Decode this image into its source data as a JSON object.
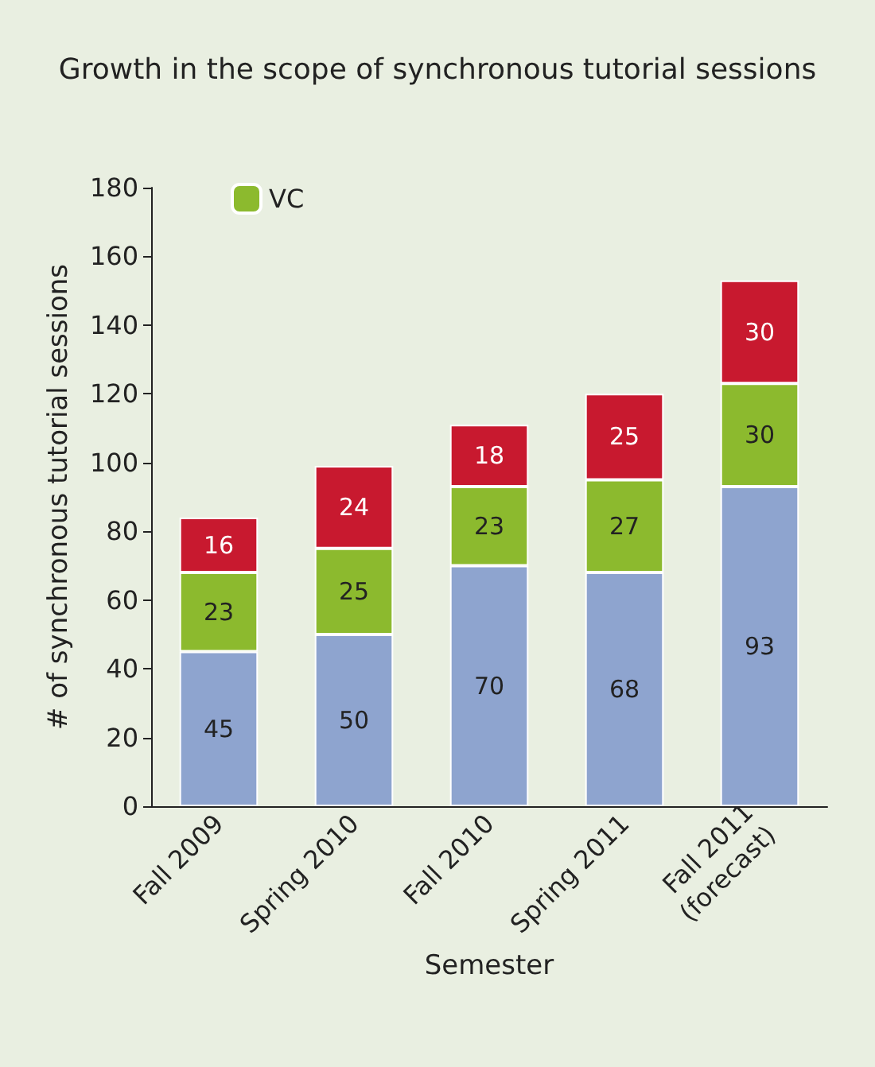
{
  "chart_data": {
    "type": "bar",
    "title": "Growth in the scope of synchronous tutorial sessions",
    "xlabel": "Semester",
    "ylabel": "# of synchronous tutorial sessions",
    "categories": [
      "Fall 2009",
      "Spring 2010",
      "Fall 2010",
      "Spring 2011",
      "Fall 2011\n(forecast)"
    ],
    "series": [
      {
        "color": "#8ea4cf",
        "values": [
          45,
          50,
          70,
          68,
          93
        ]
      },
      {
        "name": "VC",
        "color": "#8cba2e",
        "values": [
          23,
          25,
          23,
          27,
          30
        ]
      },
      {
        "color": "#c8192f",
        "values": [
          16,
          24,
          18,
          25,
          30
        ]
      }
    ],
    "stacked": true,
    "data_labels": true,
    "ylim": [
      0,
      180
    ],
    "yticks": [
      0,
      20,
      40,
      60,
      80,
      100,
      120,
      140,
      160,
      180
    ],
    "grid": false,
    "legend": "top left"
  }
}
